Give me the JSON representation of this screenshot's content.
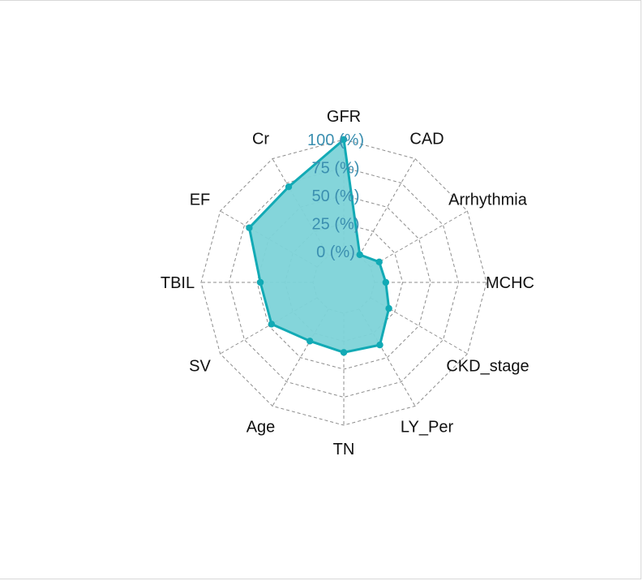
{
  "chart_data": {
    "type": "radar",
    "title": "",
    "axes": [
      "GFR",
      "CAD",
      "Arrhythmia",
      "MCHC",
      "CKD_stage",
      "LY_Per",
      "TN",
      "Age",
      "SV",
      "TBIL",
      "EF",
      "Cr"
    ],
    "tick_labels": [
      "0 (%)",
      "25 (%)",
      "50 (%)",
      "75 (%)",
      "100 (%)"
    ],
    "range": [
      0,
      100
    ],
    "series": [
      {
        "values": [
          100,
          1,
          9,
          10,
          19,
          37,
          35,
          33,
          47,
          47,
          70,
          71
        ]
      }
    ],
    "grid": "dashed-polygon",
    "colors": {
      "series_line": "#12aab5",
      "series_fill": "#7dd3d8",
      "grid": "#8c8c8c",
      "tick_text": "#3b8fb0"
    }
  }
}
